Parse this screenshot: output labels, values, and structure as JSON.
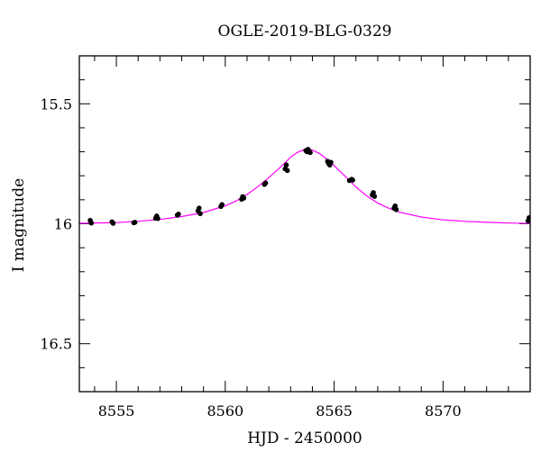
{
  "chart_data": {
    "type": "scatter",
    "title": "OGLE-2019-BLG-0329",
    "xlabel": "HJD - 2450000",
    "ylabel": "I magnitude",
    "xlim": [
      8553.3,
      8574.0
    ],
    "ylim": [
      16.7,
      15.3
    ],
    "y_inverted": true,
    "x_ticks": [
      8555,
      8560,
      8565,
      8570
    ],
    "x_tick_labels": [
      "8555",
      "8560",
      "8565",
      "8570"
    ],
    "y_ticks": [
      15.5,
      16,
      16.5
    ],
    "y_tick_labels": [
      "15.5",
      "16",
      "16.5"
    ],
    "x_minor_step": 1,
    "y_minor_step": 0.1,
    "grid": false,
    "colors": {
      "model": "#ff00ff",
      "data": "#000000",
      "frame": "#000000"
    },
    "series": [
      {
        "kind": "points",
        "x": [
          8553.8,
          8553.85,
          8554.8,
          8554.85,
          8555.8,
          8555.85,
          8556.8,
          8556.85,
          8556.9,
          8557.8,
          8557.85,
          8558.75,
          8558.8,
          8558.85,
          8559.8,
          8559.85,
          8560.75,
          8560.8,
          8560.85,
          8561.8,
          8561.85,
          8562.75,
          8562.8,
          8562.85,
          8563.7,
          8563.75,
          8563.8,
          8563.85,
          8563.9,
          8564.7,
          8564.75,
          8564.8,
          8564.85,
          8565.7,
          8565.8,
          8565.85,
          8566.75,
          8566.8,
          8566.85,
          8567.75,
          8567.8,
          8567.85,
          8573.9,
          8573.95
        ],
        "y": [
          15.986,
          15.997,
          15.992,
          15.998,
          15.996,
          15.994,
          15.977,
          15.968,
          15.978,
          15.964,
          15.96,
          15.946,
          15.935,
          15.958,
          15.928,
          15.92,
          15.898,
          15.887,
          15.893,
          15.836,
          15.83,
          15.771,
          15.755,
          15.778,
          15.695,
          15.7,
          15.69,
          15.698,
          15.703,
          15.74,
          15.749,
          15.755,
          15.744,
          15.82,
          15.815,
          15.818,
          15.88,
          15.87,
          15.886,
          15.935,
          15.926,
          15.941,
          15.988,
          15.975
        ]
      },
      {
        "kind": "model",
        "x": [
          8553.3,
          8555,
          8556,
          8557,
          8558,
          8559,
          8560,
          8560.5,
          8561,
          8561.5,
          8562,
          8562.5,
          8563,
          8563.3,
          8563.6,
          8563.8,
          8564,
          8564.3,
          8564.6,
          8565,
          8565.5,
          8566,
          8566.5,
          8567,
          8567.5,
          8568,
          8569,
          8570,
          8571,
          8572,
          8573,
          8574
        ],
        "y": [
          15.998,
          15.995,
          15.99,
          15.982,
          15.97,
          15.953,
          15.925,
          15.905,
          15.878,
          15.845,
          15.808,
          15.767,
          15.723,
          15.703,
          15.692,
          15.69,
          15.693,
          15.706,
          15.726,
          15.758,
          15.802,
          15.847,
          15.884,
          15.914,
          15.935,
          15.952,
          15.972,
          15.984,
          15.99,
          15.994,
          15.997,
          15.999
        ]
      }
    ]
  }
}
